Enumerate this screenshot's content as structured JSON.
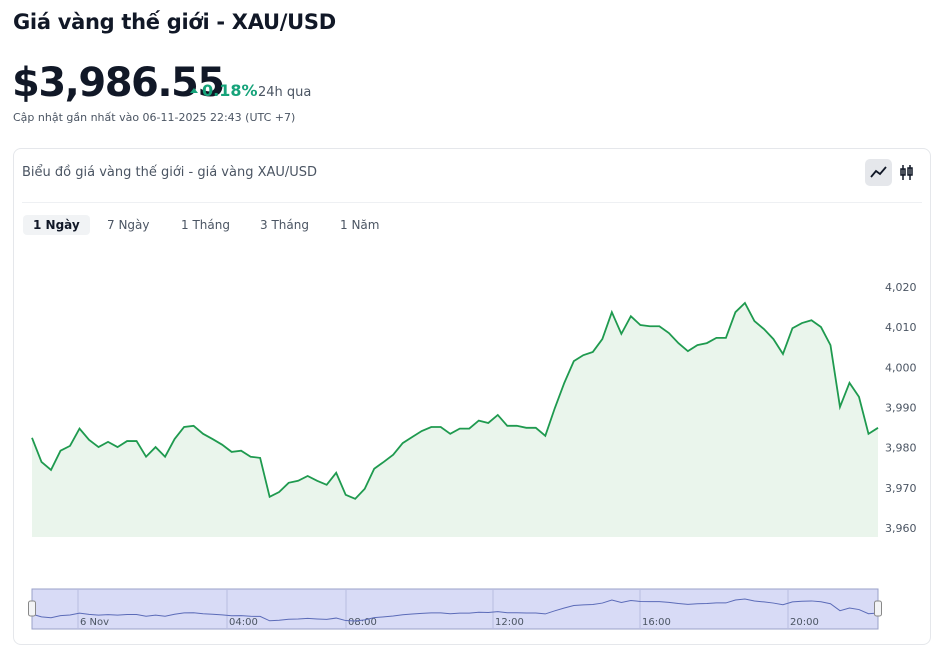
{
  "header": {
    "title": "Giá vàng thế giới - XAU/USD",
    "price": "$3,986.55",
    "change": "0.18%",
    "period": "24h qua",
    "updated": "Cập nhật gần nhất vào 06-11-2025 22:43 (UTC +7)"
  },
  "card": {
    "title": "Biểu đồ giá vàng thế giới - giá vàng XAU/USD",
    "tabs": [
      "1 Ngày",
      "7 Ngày",
      "1 Tháng",
      "3 Tháng",
      "1 Năm"
    ]
  },
  "chart_data": {
    "type": "line",
    "color": "#1f9a4f",
    "fill": "#eaf5ec",
    "values": [
      3982.7,
      3976.7,
      3974.7,
      3979.5,
      3980.7,
      3985.0,
      3982.2,
      3980.4,
      3981.7,
      3980.4,
      3981.9,
      3981.9,
      3978.0,
      3980.4,
      3978.0,
      3982.4,
      3985.4,
      3985.7,
      3983.7,
      3982.4,
      3981.0,
      3979.2,
      3979.5,
      3978.0,
      3977.7,
      3968.0,
      3969.2,
      3971.5,
      3972.0,
      3973.2,
      3972.0,
      3971.0,
      3974.0,
      3968.5,
      3967.5,
      3970.0,
      3975.0,
      3976.7,
      3978.5,
      3981.4,
      3982.9,
      3984.4,
      3985.4,
      3985.4,
      3983.7,
      3985.0,
      3985.0,
      3987.0,
      3986.4,
      3988.4,
      3985.7,
      3985.7,
      3985.2,
      3985.2,
      3983.2,
      3990.1,
      3996.4,
      4001.8,
      4003.3,
      4004.1,
      4007.3,
      4014.0,
      4008.6,
      4013.0,
      4010.8,
      4010.5,
      4010.5,
      4008.8,
      4006.3,
      4004.3,
      4005.8,
      4006.3,
      4007.6,
      4007.6,
      4014.0,
      4016.3,
      4011.8,
      4009.8,
      4007.3,
      4003.6,
      4010.0,
      4011.3,
      4012.0,
      4010.3,
      4005.8,
      3990.4,
      3996.4,
      3992.9,
      3983.7,
      3985.2
    ],
    "ylim": [
      3958,
      4027
    ],
    "yticks": [
      {
        "value": 3960,
        "label": "3,960"
      },
      {
        "value": 3970,
        "label": "3,970"
      },
      {
        "value": 3980,
        "label": "3,980"
      },
      {
        "value": 3990,
        "label": "3,990"
      },
      {
        "value": 4000,
        "label": "4,000"
      },
      {
        "value": 4010,
        "label": "4,010"
      },
      {
        "value": 4020,
        "label": "4,020"
      }
    ],
    "navigator_labels": [
      "6 Nov",
      "04:00",
      "08:00",
      "12:00",
      "16:00",
      "20:00"
    ]
  }
}
